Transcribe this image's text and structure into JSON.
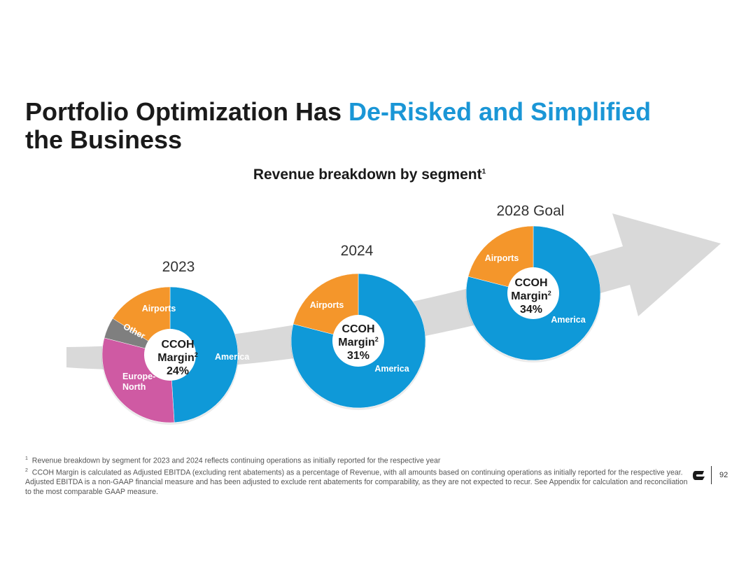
{
  "slide": {
    "title_part1": "Portfolio Optimization Has ",
    "title_highlight": "De-Risked and Simplified",
    "title_part2": "the Business",
    "subtitle": "Revenue breakdown by segment",
    "subtitle_sup": "1",
    "page_number": "92"
  },
  "colors": {
    "america": "#0f99d8",
    "airports": "#f4962b",
    "europe_north": "#cf5aa3",
    "other": "#7f7f7f",
    "arrow": "#d9d9d9",
    "highlight": "#1a96d6"
  },
  "icons": {
    "logo": "company-logo-icon"
  },
  "chart_data": [
    {
      "type": "pie",
      "donut": true,
      "title": "2023",
      "categories": [
        "America",
        "Europe-North",
        "Other",
        "Airports"
      ],
      "values": [
        49,
        30,
        5,
        16
      ],
      "labels": [
        "America",
        "Europe-\nNorth",
        "Other",
        "Airports"
      ],
      "center": {
        "line1": "CCOH",
        "line2": "Margin",
        "sup": "2",
        "value": "24%"
      }
    },
    {
      "type": "pie",
      "donut": true,
      "title": "2024",
      "categories": [
        "America",
        "Airports"
      ],
      "values": [
        79,
        21
      ],
      "labels": [
        "America",
        "Airports"
      ],
      "center": {
        "line1": "CCOH",
        "line2": "Margin",
        "sup": "2",
        "value": "31%"
      }
    },
    {
      "type": "pie",
      "donut": true,
      "title": "2028 Goal",
      "categories": [
        "America",
        "Airports"
      ],
      "values": [
        79,
        21
      ],
      "labels": [
        "America",
        "Airports"
      ],
      "center": {
        "line1": "CCOH",
        "line2": "Margin",
        "sup": "2",
        "value": "34%"
      }
    }
  ],
  "footnotes": [
    {
      "num": "1",
      "text": "Revenue breakdown by segment for 2023 and 2024 reflects continuing operations as initially reported for the respective year"
    },
    {
      "num": "2",
      "text": "CCOH Margin is calculated as Adjusted EBITDA (excluding rent abatements) as a percentage of Revenue, with all amounts based on continuing operations as initially reported for the respective year.  Adjusted EBITDA is a non-GAAP financial measure and has been adjusted to exclude rent abatements for comparability, as they are not expected to recur. See Appendix for calculation and reconciliation to the most comparable GAAP measure."
    }
  ]
}
